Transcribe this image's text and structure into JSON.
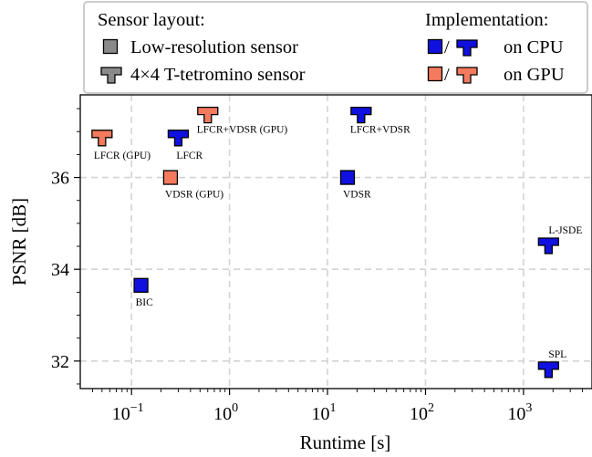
{
  "chart_data": {
    "type": "scatter",
    "xlabel": "Runtime [s]",
    "ylabel": "PSNR [dB]",
    "xscale": "log",
    "xlim": [
      0.03,
      5000
    ],
    "ylim": [
      31.4,
      37.8
    ],
    "x_ticks": [
      {
        "value": 0.1,
        "base": "10",
        "exp": "−1"
      },
      {
        "value": 1,
        "base": "10",
        "exp": "0"
      },
      {
        "value": 10,
        "base": "10",
        "exp": "1"
      },
      {
        "value": 100,
        "base": "10",
        "exp": "2"
      },
      {
        "value": 1000,
        "base": "10",
        "exp": "3"
      }
    ],
    "y_ticks": [
      32,
      34,
      36
    ],
    "grid": true,
    "legend_placement": "top",
    "legend": {
      "sensor_title": "Sensor layout:",
      "sensor_items": [
        {
          "marker": "square",
          "label": "Low-resolution sensor"
        },
        {
          "marker": "tetromino",
          "label": "4×4 T-tetromino sensor"
        }
      ],
      "impl_title": "Implementation:",
      "impl_items": [
        {
          "device": "cpu",
          "separator": "/",
          "label": "on CPU"
        },
        {
          "device": "gpu",
          "separator": "/",
          "label": "on GPU"
        }
      ]
    },
    "colors": {
      "cpu": "#1010e0",
      "gpu": "#f47a5e",
      "gray": "#8a8a8a",
      "edge": "#000000",
      "grid": "#d4d4d4"
    },
    "points": [
      {
        "label": "LFCR (GPU)",
        "x": 0.05,
        "y": 36.85,
        "marker": "tetromino",
        "device": "gpu",
        "label_pos": "below-right"
      },
      {
        "label": "LFCR",
        "x": 0.3,
        "y": 36.85,
        "marker": "tetromino",
        "device": "cpu",
        "label_pos": "below"
      },
      {
        "label": "LFCR+VDSR (GPU)",
        "x": 0.6,
        "y": 37.35,
        "marker": "tetromino",
        "device": "gpu",
        "label_pos": "below-right"
      },
      {
        "label": "LFCR+VDSR",
        "x": 22,
        "y": 37.35,
        "marker": "tetromino",
        "device": "cpu",
        "label_pos": "below-right"
      },
      {
        "label": "VDSR (GPU)",
        "x": 0.25,
        "y": 36.0,
        "marker": "square",
        "device": "gpu",
        "label_pos": "below-right"
      },
      {
        "label": "VDSR",
        "x": 16,
        "y": 36.0,
        "marker": "square",
        "device": "cpu",
        "label_pos": "below-right"
      },
      {
        "label": "BIC",
        "x": 0.125,
        "y": 33.65,
        "marker": "square",
        "device": "cpu",
        "label_pos": "below-right"
      },
      {
        "label": "L-JSDE",
        "x": 1800,
        "y": 34.5,
        "marker": "tetromino",
        "device": "cpu",
        "label_pos": "above"
      },
      {
        "label": "SPL",
        "x": 1800,
        "y": 31.8,
        "marker": "tetromino",
        "device": "cpu",
        "label_pos": "above"
      }
    ]
  }
}
